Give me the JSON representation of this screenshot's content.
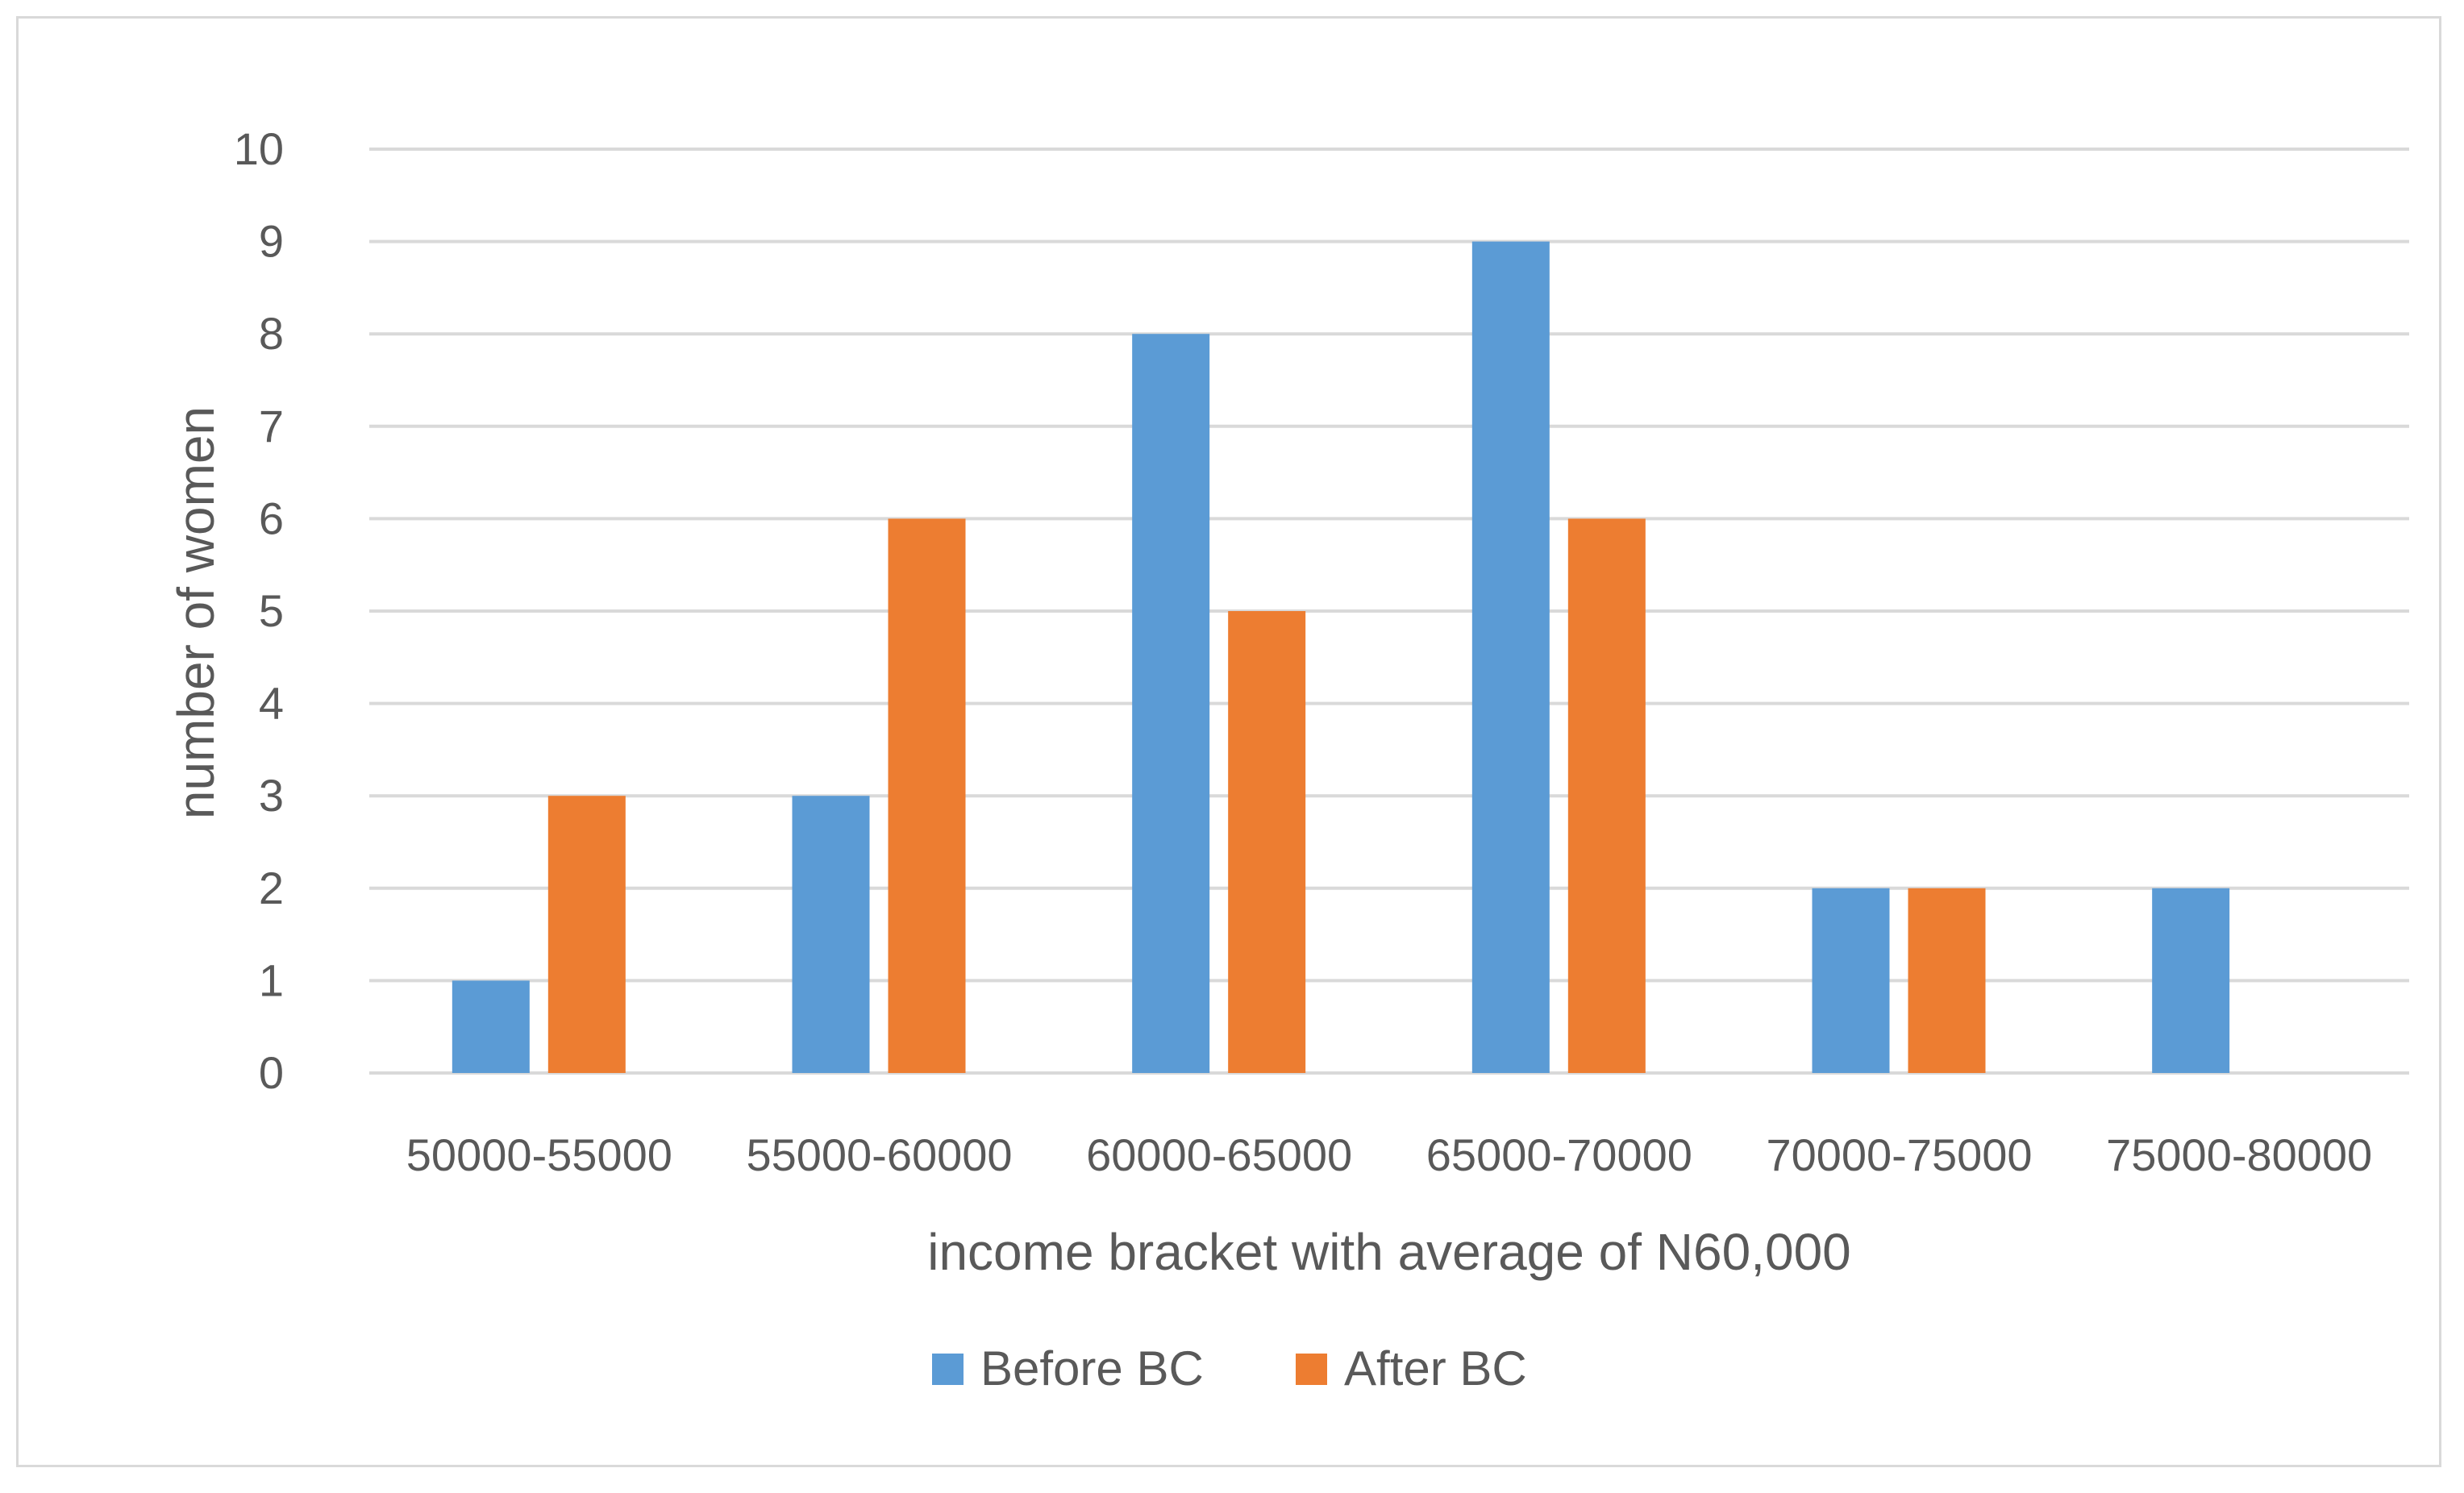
{
  "chart_data": {
    "type": "bar",
    "title": "",
    "xlabel": "income bracket with average of N60,000",
    "ylabel": "number of women",
    "categories": [
      "50000-55000",
      "55000-60000",
      "60000-65000",
      "65000-70000",
      "70000-75000",
      "75000-80000"
    ],
    "series": [
      {
        "name": "Before BC",
        "color": "#5B9BD5",
        "values": [
          1,
          3,
          8,
          9,
          2,
          2
        ]
      },
      {
        "name": "After BC",
        "color": "#ED7D31",
        "values": [
          3,
          6,
          5,
          6,
          2,
          0
        ]
      }
    ],
    "ylim": [
      0,
      10
    ],
    "yticks": [
      0,
      1,
      2,
      3,
      4,
      5,
      6,
      7,
      8,
      9,
      10
    ],
    "grid": true,
    "legend": "bottom"
  }
}
